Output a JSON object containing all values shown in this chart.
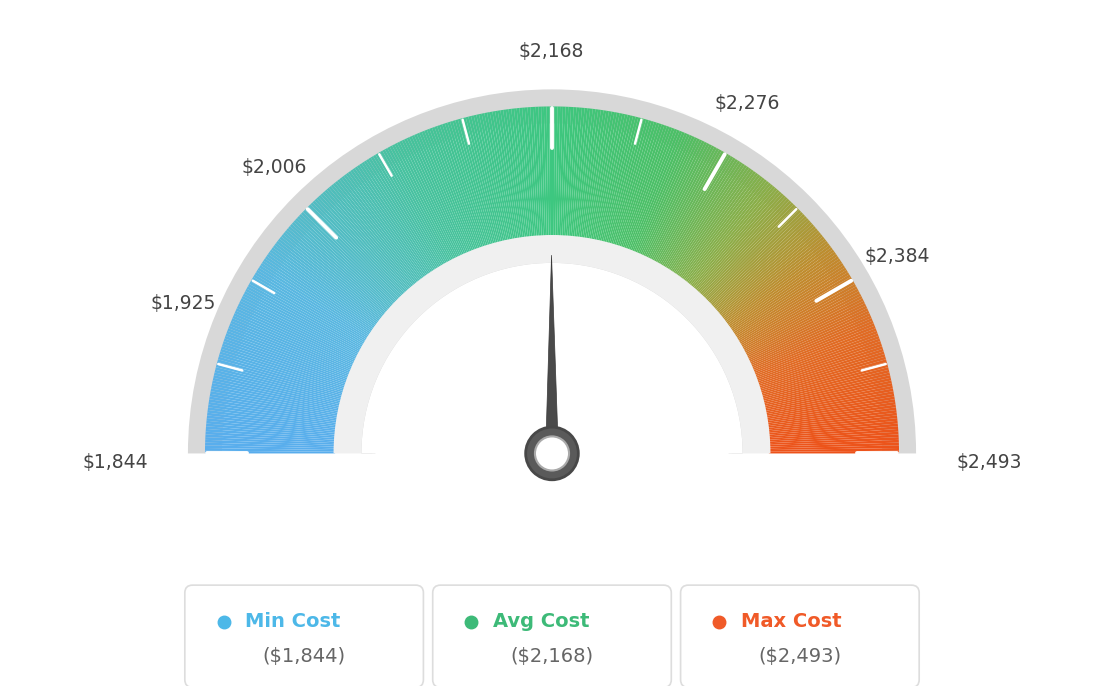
{
  "min_val": 1844,
  "max_val": 2493,
  "avg_val": 2168,
  "tick_labels": [
    "$1,844",
    "$1,925",
    "$2,006",
    "$2,168",
    "$2,276",
    "$2,384",
    "$2,493"
  ],
  "tick_values": [
    1844,
    1925,
    2006,
    2168,
    2276,
    2384,
    2493
  ],
  "legend": [
    {
      "label": "Min Cost",
      "value": "($1,844)",
      "color": "#4db8e8"
    },
    {
      "label": "Avg Cost",
      "value": "($2,168)",
      "color": "#3dba78"
    },
    {
      "label": "Max Cost",
      "value": "($2,493)",
      "color": "#f05a28"
    }
  ],
  "background_color": "#ffffff",
  "gauge_colors": [
    [
      0.0,
      [
        0.35,
        0.68,
        0.93
      ]
    ],
    [
      0.18,
      [
        0.35,
        0.72,
        0.88
      ]
    ],
    [
      0.35,
      [
        0.28,
        0.76,
        0.62
      ]
    ],
    [
      0.5,
      [
        0.24,
        0.78,
        0.5
      ]
    ],
    [
      0.62,
      [
        0.3,
        0.75,
        0.4
      ]
    ],
    [
      0.72,
      [
        0.55,
        0.68,
        0.28
      ]
    ],
    [
      0.8,
      [
        0.75,
        0.55,
        0.18
      ]
    ],
    [
      0.88,
      [
        0.88,
        0.42,
        0.14
      ]
    ],
    [
      1.0,
      [
        0.93,
        0.32,
        0.1
      ]
    ]
  ]
}
